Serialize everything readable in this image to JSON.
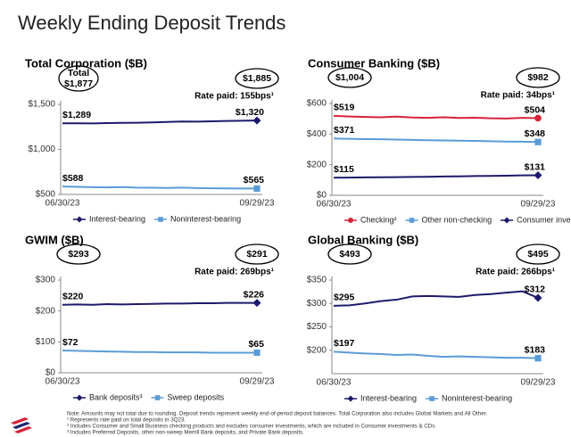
{
  "title": "Weekly Ending Deposit Trends",
  "chart_data": [
    {
      "type": "line",
      "title": "Total Corporation ($B)",
      "total_label": "Total",
      "start_total": "$1,877",
      "end_total": "$1,885",
      "rate_paid": "Rate paid: 155bps¹",
      "categories": [
        "06/30/23",
        null,
        null,
        null,
        null,
        null,
        null,
        null,
        null,
        null,
        null,
        null,
        null,
        "09/29/23"
      ],
      "ylim": [
        500,
        1500
      ],
      "yticks": [
        {
          "value": 500,
          "label": "$500"
        },
        {
          "value": 1000,
          "label": "$1,000"
        },
        {
          "value": 1500,
          "label": "$1,500"
        }
      ],
      "series": [
        {
          "name": "Interest-bearing",
          "color": "#1d1a6b",
          "marker": "diamond",
          "values": [
            1289,
            1290,
            1288,
            1292,
            1294,
            1296,
            1300,
            1305,
            1310,
            1308,
            1312,
            1315,
            1318,
            1320
          ],
          "value_labels": [
            "$1,289",
            null,
            null,
            null,
            null,
            null,
            null,
            null,
            null,
            null,
            null,
            null,
            null,
            "$1,320"
          ]
        },
        {
          "name": "Noninterest-bearing",
          "color": "#5b9bd5",
          "marker": "square",
          "values": [
            588,
            584,
            580,
            578,
            582,
            576,
            574,
            572,
            575,
            570,
            568,
            567,
            566,
            565
          ],
          "value_labels": [
            "$588",
            null,
            null,
            null,
            null,
            null,
            null,
            null,
            null,
            null,
            null,
            null,
            null,
            "$565"
          ]
        }
      ]
    },
    {
      "type": "line",
      "title": "Consumer Banking ($B)",
      "start_total": "$1,004",
      "end_total": "$982",
      "rate_paid": "Rate paid: 34bps¹",
      "categories": [
        "06/30/23",
        null,
        null,
        null,
        null,
        null,
        null,
        null,
        null,
        null,
        null,
        null,
        null,
        "09/29/23"
      ],
      "ylim": [
        0,
        600
      ],
      "yticks": [
        {
          "value": 0,
          "label": "$0"
        },
        {
          "value": 200,
          "label": "$200"
        },
        {
          "value": 400,
          "label": "$400"
        },
        {
          "value": 600,
          "label": "$600"
        }
      ],
      "series": [
        {
          "name": "Checking²",
          "color": "#d6243a",
          "marker": "circle",
          "values": [
            519,
            515,
            512,
            510,
            514,
            508,
            506,
            510,
            505,
            507,
            503,
            502,
            506,
            504
          ],
          "value_labels": [
            "$519",
            null,
            null,
            null,
            null,
            null,
            null,
            null,
            null,
            null,
            null,
            null,
            null,
            "$504"
          ]
        },
        {
          "name": "Other non-checking",
          "color": "#5b9bd5",
          "marker": "square",
          "values": [
            371,
            369,
            367,
            366,
            364,
            362,
            360,
            358,
            357,
            355,
            353,
            351,
            350,
            348
          ],
          "value_labels": [
            "$371",
            null,
            null,
            null,
            null,
            null,
            null,
            null,
            null,
            null,
            null,
            null,
            null,
            "$348"
          ]
        },
        {
          "name": "Consumer investments & CDs",
          "color": "#1d1a6b",
          "marker": "diamond",
          "values": [
            115,
            116,
            117,
            118,
            119,
            120,
            121,
            123,
            124,
            126,
            127,
            128,
            130,
            131
          ],
          "value_labels": [
            "$115",
            null,
            null,
            null,
            null,
            null,
            null,
            null,
            null,
            null,
            null,
            null,
            null,
            "$131"
          ]
        }
      ]
    },
    {
      "type": "line",
      "title": "GWIM ($B)",
      "start_total": "$293",
      "end_total": "$291",
      "rate_paid": "Rate paid: 269bps¹",
      "categories": [
        "06/30/23",
        null,
        null,
        null,
        null,
        null,
        null,
        null,
        null,
        null,
        null,
        null,
        null,
        "09/29/23"
      ],
      "ylim": [
        0,
        300
      ],
      "yticks": [
        {
          "value": 0,
          "label": "$0"
        },
        {
          "value": 100,
          "label": "$100"
        },
        {
          "value": 200,
          "label": "$200"
        },
        {
          "value": 300,
          "label": "$300"
        }
      ],
      "series": [
        {
          "name": "Bank deposits³",
          "color": "#1d1a6b",
          "marker": "diamond",
          "values": [
            220,
            221,
            220,
            222,
            221,
            222,
            223,
            224,
            224,
            225,
            225,
            226,
            226,
            226
          ],
          "value_labels": [
            "$220",
            null,
            null,
            null,
            null,
            null,
            null,
            null,
            null,
            null,
            null,
            null,
            null,
            "$226"
          ]
        },
        {
          "name": "Sweep deposits",
          "color": "#5b9bd5",
          "marker": "square",
          "values": [
            72,
            71,
            70,
            69,
            68,
            67,
            67,
            66,
            66,
            66,
            65,
            65,
            65,
            65
          ],
          "value_labels": [
            "$72",
            null,
            null,
            null,
            null,
            null,
            null,
            null,
            null,
            null,
            null,
            null,
            null,
            "$65"
          ]
        }
      ]
    },
    {
      "type": "line",
      "title": "Global Banking ($B)",
      "start_total": "$493",
      "end_total": "$495",
      "rate_paid": "Rate paid: 266bps¹",
      "categories": [
        "06/30/23",
        null,
        null,
        null,
        null,
        null,
        null,
        null,
        null,
        null,
        null,
        null,
        null,
        "09/29/23"
      ],
      "ylim": [
        150,
        350
      ],
      "yticks": [
        {
          "value": 200,
          "label": "$200"
        },
        {
          "value": 250,
          "label": "$250"
        },
        {
          "value": 300,
          "label": "$300"
        },
        {
          "value": 350,
          "label": "$350"
        }
      ],
      "series": [
        {
          "name": "Interest-bearing",
          "color": "#1d1a6b",
          "marker": "diamond",
          "values": [
            295,
            296,
            300,
            305,
            308,
            315,
            316,
            315,
            314,
            318,
            320,
            323,
            326,
            312
          ],
          "value_labels": [
            "$295",
            null,
            null,
            null,
            null,
            null,
            null,
            null,
            null,
            null,
            null,
            null,
            null,
            "$312"
          ]
        },
        {
          "name": "Noninterest-bearing",
          "color": "#5b9bd5",
          "marker": "square",
          "values": [
            197,
            195,
            193,
            192,
            190,
            191,
            188,
            186,
            187,
            186,
            185,
            184,
            184,
            183
          ],
          "value_labels": [
            "$197",
            null,
            null,
            null,
            null,
            null,
            null,
            null,
            null,
            null,
            null,
            null,
            null,
            "$183"
          ]
        }
      ]
    }
  ],
  "footnotes": [
    "Note: Amounts may not total due to rounding. Deposit trends represent weekly end-of-period deposit balances. Total Corporation also includes Global Markets and All Other.",
    "¹ Represents rate paid on total deposits in 3Q23.",
    "² Includes Consumer and Small Business checking products and excludes consumer investments, which are included in Consumer investments & CDs.",
    "³ Includes Preferred Deposits, other non-sweep Merrill Bank deposits, and Private Bank deposits."
  ]
}
